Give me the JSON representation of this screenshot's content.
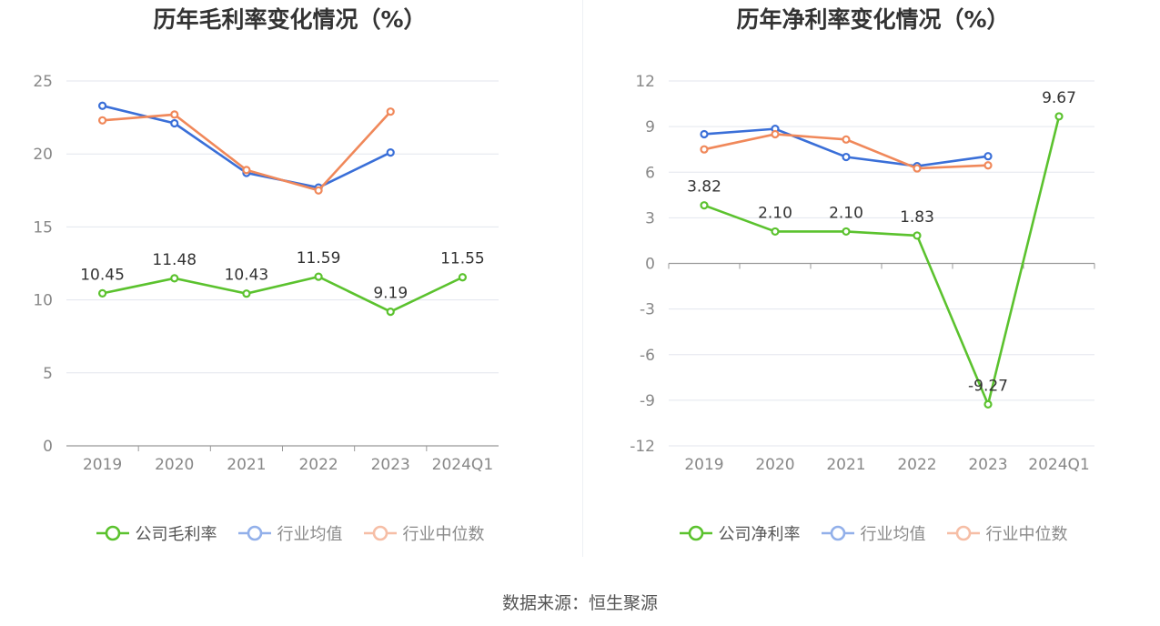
{
  "footer": {
    "source": "数据来源：恒生聚源"
  },
  "colors": {
    "company": "#5bc22e",
    "avg": "#3a6fd8",
    "median": "#f0885a"
  },
  "icons": {
    "legend_marker": "line-with-circle-icon"
  },
  "chart_data": [
    {
      "type": "line",
      "title": "历年毛利率变化情况（%）",
      "categories": [
        "2019",
        "2020",
        "2021",
        "2022",
        "2023",
        "2024Q1"
      ],
      "yticks": [
        "0",
        "5",
        "10",
        "15",
        "20",
        "25"
      ],
      "ylim": [
        0,
        25
      ],
      "grid": true,
      "legend_position": "bottom",
      "series": [
        {
          "name": "公司毛利率",
          "color": "#5bc22e",
          "values": [
            10.45,
            11.48,
            10.43,
            11.59,
            9.19,
            11.55
          ],
          "labels": [
            "10.45",
            "11.48",
            "10.43",
            "11.59",
            "9.19",
            "11.55"
          ],
          "active": true
        },
        {
          "name": "行业均值",
          "color": "#3a6fd8",
          "values": [
            23.3,
            22.1,
            18.7,
            17.7,
            20.1,
            null
          ],
          "active": false
        },
        {
          "name": "行业中位数",
          "color": "#f0885a",
          "values": [
            22.3,
            22.7,
            18.9,
            17.5,
            22.9,
            null
          ],
          "active": false
        }
      ]
    },
    {
      "type": "line",
      "title": "历年净利率变化情况（%）",
      "categories": [
        "2019",
        "2020",
        "2021",
        "2022",
        "2023",
        "2024Q1"
      ],
      "yticks": [
        "12",
        "9",
        "6",
        "3",
        "0",
        "-3",
        "-6",
        "-9",
        "-12"
      ],
      "ylim": [
        -12,
        12
      ],
      "grid": true,
      "legend_position": "bottom",
      "series": [
        {
          "name": "公司净利率",
          "color": "#5bc22e",
          "values": [
            3.82,
            2.1,
            2.1,
            1.83,
            -9.27,
            9.67
          ],
          "labels": [
            "3.82",
            "2.10",
            "2.10",
            "1.83",
            "-9.27",
            "9.67"
          ],
          "active": true
        },
        {
          "name": "行业均值",
          "color": "#3a6fd8",
          "values": [
            8.5,
            8.85,
            7.0,
            6.4,
            7.05,
            null
          ],
          "active": false
        },
        {
          "name": "行业中位数",
          "color": "#f0885a",
          "values": [
            7.5,
            8.5,
            8.15,
            6.25,
            6.45,
            null
          ],
          "active": false
        }
      ]
    }
  ]
}
